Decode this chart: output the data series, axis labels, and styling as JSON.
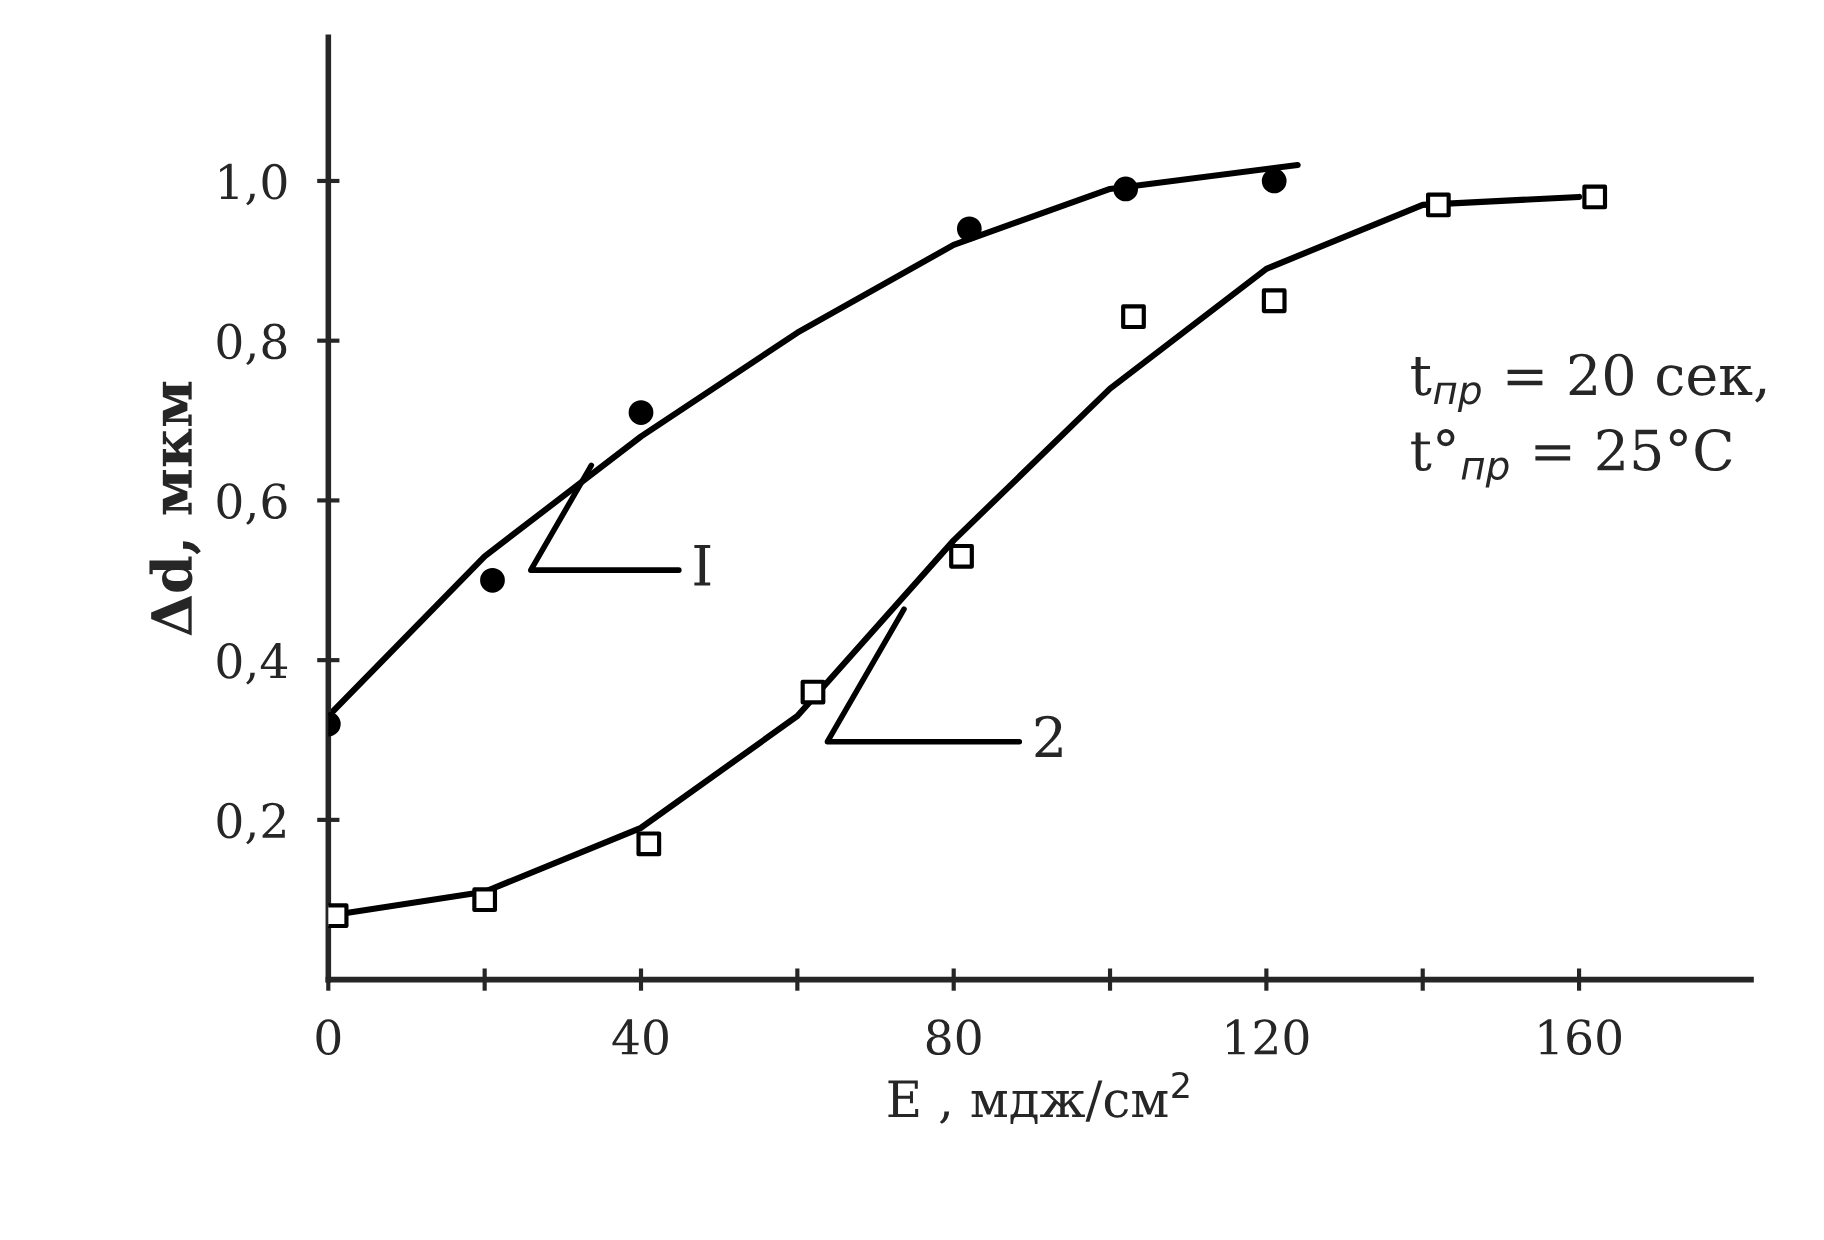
{
  "chart_data": {
    "type": "scatter",
    "xlabel": "E , мдж/см$^{2}$",
    "ylabel": "Δd, мкм",
    "xlim": [
      0,
      182
    ],
    "ylim": [
      0,
      1.18
    ],
    "xticks": [
      0,
      {
        "value": 20,
        "label": null
      },
      40,
      {
        "value": 60,
        "label": null
      },
      80,
      {
        "value": 100,
        "label": null
      },
      120,
      {
        "value": 140,
        "label": null
      },
      160
    ],
    "yticks": [
      {
        "value": 0.2,
        "label": "0,2"
      },
      {
        "value": 0.4,
        "label": "0,4"
      },
      {
        "value": 0.6,
        "label": "0,6"
      },
      {
        "value": 0.8,
        "label": "0,8"
      },
      {
        "value": 1.0,
        "label": "1,0"
      }
    ],
    "grid": false,
    "series": [
      {
        "marker": "circle",
        "color": "#000000",
        "x": [
          0,
          21,
          40,
          82,
          102,
          121
        ],
        "values": [
          0.32,
          0.5,
          0.71,
          0.94,
          0.99,
          1.0
        ]
      },
      {
        "marker": "square",
        "color": "#000000",
        "x": [
          1,
          20,
          41,
          62,
          81,
          103,
          121,
          142,
          162
        ],
        "values": [
          0.08,
          0.1,
          0.17,
          0.36,
          0.53,
          0.83,
          0.85,
          0.97,
          0.98
        ]
      },
      {
        "type": "line",
        "color": "#000000",
        "x": [
          0,
          20,
          40,
          60,
          80,
          100,
          124
        ],
        "values": [
          0.33,
          0.53,
          0.68,
          0.81,
          0.92,
          0.99,
          1.02
        ]
      },
      {
        "type": "line",
        "color": "#000000",
        "x": [
          0,
          20,
          40,
          60,
          80,
          100,
          120,
          140,
          160
        ],
        "values": [
          0.08,
          0.11,
          0.19,
          0.33,
          0.55,
          0.74,
          0.89,
          0.97,
          0.98
        ]
      }
    ],
    "annotations": [
      {
        "text": "I",
        "x": 34,
        "y": 0.65
      },
      {
        "text": "2",
        "x": 74,
        "y": 0.47
      },
      "t$_{пр}$ = 20 сек,",
      "t°$_{пр}$ = 25°C"
    ]
  }
}
